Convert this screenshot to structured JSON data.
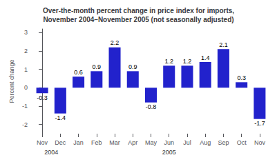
{
  "chart_data": {
    "type": "bar",
    "title": "Over-the-month percent change in price index for imports,\nNovember 2004–November 2005 (not seasonally adjusted)",
    "y_label": "Percent change",
    "categories": [
      "Nov",
      "Dec",
      "Jan",
      "Feb",
      "Mar",
      "Apr",
      "May",
      "Jun",
      "Jul",
      "Aug",
      "Sep",
      "Oct",
      "Nov"
    ],
    "values": [
      -0.3,
      -1.4,
      0.6,
      0.9,
      2.2,
      0.9,
      -0.8,
      1.2,
      1.2,
      1.4,
      2.1,
      0.3,
      -1.7
    ],
    "color": "#2222cc",
    "ylim": [
      -2.5,
      3.2
    ],
    "yticks": [
      -2,
      -1,
      0,
      1,
      2,
      3
    ],
    "grid": false,
    "data_labels": true,
    "annotations": [
      {
        "text": "2004",
        "x": 0.5
      },
      {
        "text": "2005",
        "x": 7.0
      }
    ]
  }
}
